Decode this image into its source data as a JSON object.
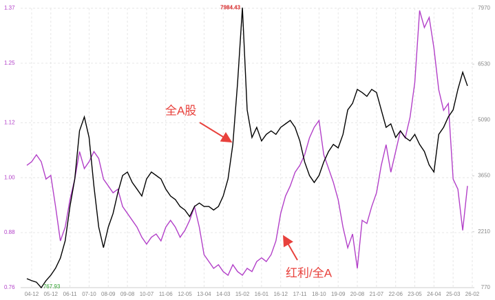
{
  "chart_data": {
    "type": "line",
    "categories": [
      null,
      "04-12",
      null,
      null,
      null,
      "05-12",
      null,
      null,
      null,
      "06-11",
      null,
      null,
      null,
      "07-10",
      null,
      null,
      null,
      "08-09",
      null,
      null,
      null,
      "09-08",
      null,
      null,
      null,
      "10-07",
      null,
      null,
      null,
      "11-06",
      null,
      null,
      null,
      "12-05",
      null,
      null,
      null,
      "13-04",
      null,
      null,
      null,
      "14-03",
      null,
      null,
      null,
      "15-02",
      null,
      null,
      null,
      "16-01",
      null,
      null,
      null,
      "16-12",
      null,
      null,
      null,
      "17-11",
      null,
      null,
      null,
      "18-10",
      null,
      null,
      null,
      "19-09",
      null,
      null,
      null,
      "20-08",
      null,
      null,
      null,
      "21-07",
      null,
      null,
      null,
      "22-06",
      null,
      null,
      null,
      "23-05",
      null,
      null,
      null,
      "24-04",
      null,
      null,
      null,
      "25-03",
      null,
      null,
      null,
      "26-02"
    ],
    "series": [
      {
        "name": "全A股",
        "color": "#000000",
        "axis": "y2",
        "values": [
          1000,
          950,
          910,
          767.93,
          950,
          1090,
          1270,
          1530,
          1980,
          2860,
          3570,
          4810,
          5170,
          4640,
          3390,
          2330,
          1800,
          2330,
          2680,
          3220,
          3660,
          3750,
          3480,
          3310,
          3130,
          3570,
          3750,
          3660,
          3570,
          3310,
          3130,
          3040,
          2860,
          2770,
          2600,
          2860,
          2950,
          2860,
          2860,
          2770,
          2860,
          3130,
          3570,
          4460,
          6050,
          7984.43,
          5350,
          4640,
          4900,
          4550,
          4720,
          4810,
          4720,
          4900,
          4990,
          5080,
          4900,
          4550,
          4010,
          3660,
          3480,
          3660,
          4010,
          4280,
          4460,
          4370,
          4720,
          5350,
          5520,
          5880,
          5800,
          5700,
          5880,
          5800,
          5350,
          4900,
          4990,
          4640,
          4810,
          4640,
          4550,
          4720,
          4460,
          4280,
          3930,
          3750,
          4720,
          4900,
          5170,
          5350,
          5880,
          6320,
          5970,
          null
        ]
      },
      {
        "name": "红利/全A",
        "color": "#b23fc8",
        "values": [
          1.027,
          1.035,
          1.05,
          1.035,
          0.997,
          1.005,
          0.937,
          0.862,
          0.892,
          0.952,
          0.997,
          1.057,
          1.02,
          1.035,
          1.057,
          1.042,
          0.997,
          0.982,
          0.967,
          0.975,
          0.937,
          0.922,
          0.907,
          0.892,
          0.87,
          0.855,
          0.87,
          0.877,
          0.862,
          0.892,
          0.907,
          0.892,
          0.87,
          0.885,
          0.907,
          0.937,
          0.892,
          0.832,
          0.817,
          0.802,
          0.81,
          0.795,
          0.787,
          0.81,
          0.795,
          0.787,
          0.802,
          0.795,
          0.817,
          0.825,
          0.817,
          0.832,
          0.862,
          0.922,
          0.96,
          0.982,
          1.012,
          1.027,
          1.05,
          1.087,
          1.11,
          1.125,
          1.05,
          1.02,
          0.99,
          0.952,
          0.892,
          0.847,
          0.877,
          0.802,
          0.907,
          0.9,
          0.937,
          0.967,
          1.027,
          1.072,
          1.012,
          1.057,
          1.102,
          1.087,
          1.132,
          1.208,
          1.365,
          1.328,
          1.35,
          1.283,
          1.192,
          1.147,
          1.162,
          0.997,
          0.975,
          0.885,
          0.982,
          null
        ]
      }
    ],
    "ylim": [
      0.76,
      1.37
    ],
    "yticks": [
      0.76,
      0.88,
      {
        "value": 1,
        "label": "1.00"
      },
      1.12,
      1.25,
      1.37
    ],
    "y2lim": [
      770,
      7970
    ],
    "y2ticks": [
      770,
      2210,
      3650,
      5090,
      6530,
      7970
    ],
    "grid": true
  }
}
